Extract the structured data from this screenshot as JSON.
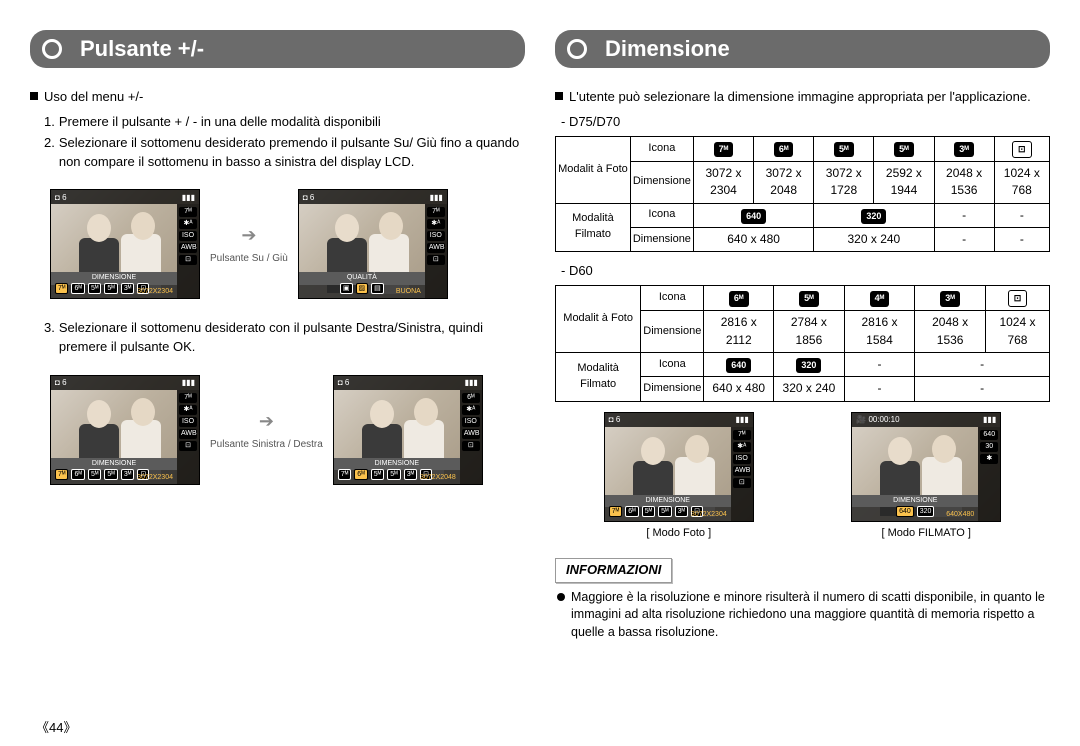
{
  "page_number": "《44》",
  "left": {
    "title": "Pulsante +/-",
    "section_label": "Uso del menu +/-",
    "steps": {
      "s1": "Premere il pulsante + / - in una delle modalità disponibili",
      "s2": "Selezionare il sottomenu desiderato premendo il pulsante Su/ Giù fino a quando non compare il sottomenu in basso a sinistra del display LCD.",
      "s3": "Selezionare il sottomenu desiderato con il pulsante Destra/Sinistra, quindi premere il pulsante OK."
    },
    "arrow1": "Pulsante Su / Giù",
    "arrow2": "Pulsante Sinistra / Destra",
    "lcd": {
      "topbar_left_icon": "◘",
      "topbar_count": "6",
      "topbar_batt": "▮▮▮",
      "right_side": [
        "7ᴹ",
        "✱ᴬ",
        "ISO",
        "AWB",
        "⊡"
      ],
      "label_dim": "DIMENSIONE",
      "label_qual": "QUALITÀ",
      "sizes": [
        "7ᴹ",
        "6ᴹ",
        "5ᴹ",
        "5ᴹ",
        "3ᴹ",
        "⊡"
      ],
      "res1": "3072X2304",
      "res2": "3072X2048",
      "qual_val": "BUONA"
    }
  },
  "right": {
    "title": "Dimensione",
    "intro": "L'utente può selezionare la dimensione immagine appropriata per l'applicazione.",
    "model1": "- D75/D70",
    "model2": "- D60",
    "row_hdrs": {
      "foto": "Modalit à Foto",
      "film": "Modalità Filmato",
      "icona": "Icona",
      "dim": "Dimensione"
    },
    "t1": {
      "foto_icons": [
        "7ᴹ",
        "6ᴹ",
        "5ᴹ",
        "5ᴹ",
        "3ᴹ",
        "⊡"
      ],
      "foto_dims": [
        "3072 x 2304",
        "3072 x 2048",
        "3072 x 1728",
        "2592 x 1944",
        "2048 x 1536",
        "1024 x 768"
      ],
      "film_icons": [
        "640",
        "320",
        "-",
        "-"
      ],
      "film_dims": [
        "640 x 480",
        "320 x 240",
        "-",
        "-"
      ]
    },
    "t2": {
      "foto_icons": [
        "6ᴹ",
        "5ᴹ",
        "4ᴹ",
        "3ᴹ",
        "⊡"
      ],
      "foto_dims": [
        "2816 x 2112",
        "2784 x 1856",
        "2816 x 1584",
        "2048 x 1536",
        "1024 x 768"
      ],
      "film_icons": [
        "640",
        "320",
        "-",
        "-"
      ],
      "film_dims": [
        "640 x 480",
        "320 x 240",
        "-",
        "-"
      ]
    },
    "preview": {
      "cap_foto": "[ Modo Foto ]",
      "cap_film": "[ Modo FILMATO ]",
      "film_time": "00:00:10",
      "film_sizes": [
        "640",
        "320"
      ],
      "film_res": "640X480",
      "film_side": [
        "640",
        "30",
        "✱"
      ]
    },
    "info": {
      "title": "INFORMAZIONI",
      "text": "Maggiore è la risoluzione e minore risulterà il numero di scatti disponibile, in quanto le immagini ad alta risoluzione richiedono una maggiore quantità di memoria rispetto a quelle a bassa risoluzione."
    }
  }
}
